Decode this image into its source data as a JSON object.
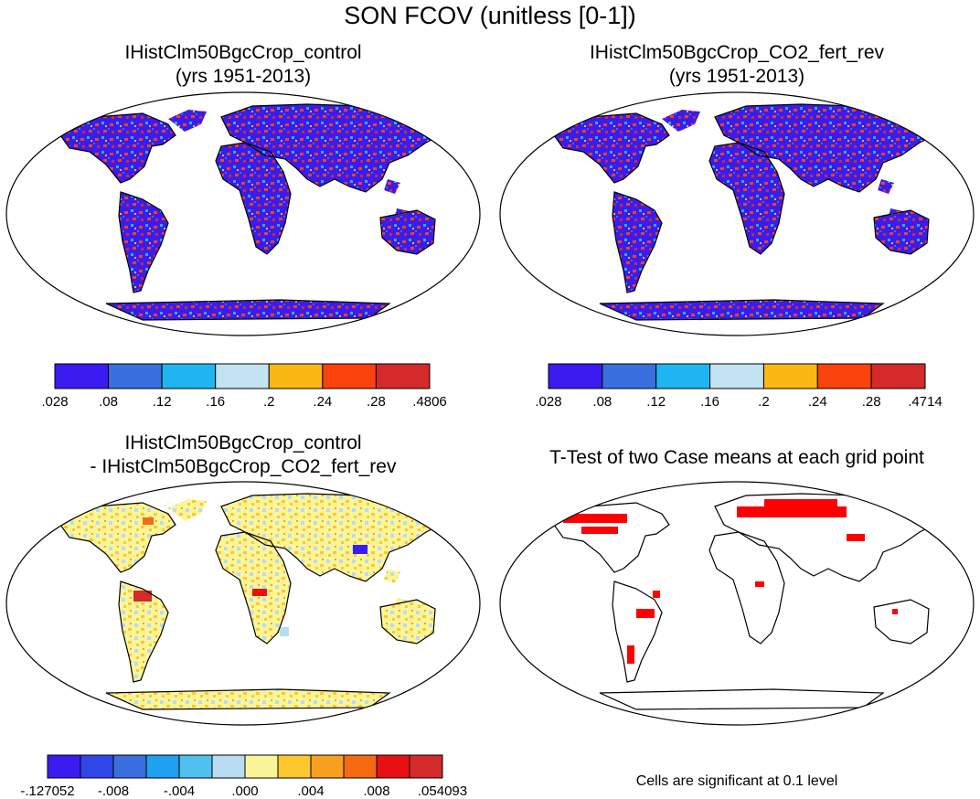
{
  "figure": {
    "title": "SON FCOV (unitless [0-1])",
    "note": "Cells are significant at 0.1 level"
  },
  "chart_data": [
    {
      "type": "heatmap",
      "title": "IHistClm50BgcCrop_control",
      "subtitle": "(yrs 1951-2013)",
      "colorbar": {
        "labels": [
          ".028",
          ".08",
          ".12",
          ".16",
          ".2",
          ".24",
          ".28",
          ".4806"
        ],
        "colors": [
          "#3a1cf0",
          "#3a6fe0",
          "#1fb5f2",
          "#c3e2f2",
          "#fbb714",
          "#fa420d",
          "#d42a2a"
        ],
        "range": [
          0.028,
          0.4806
        ]
      }
    },
    {
      "type": "heatmap",
      "title": "IHistClm50BgcCrop_CO2_fert_rev",
      "subtitle": "(yrs 1951-2013)",
      "colorbar": {
        "labels": [
          ".028",
          ".08",
          ".12",
          ".16",
          ".2",
          ".24",
          ".28",
          ".4714"
        ],
        "colors": [
          "#3a1cf0",
          "#3a6fe0",
          "#1fb5f2",
          "#c3e2f2",
          "#fbb714",
          "#fa420d",
          "#d42a2a"
        ],
        "range": [
          0.028,
          0.4714
        ]
      }
    },
    {
      "type": "heatmap",
      "title": "IHistClm50BgcCrop_control",
      "subtitle": "- IHistClm50BgcCrop_CO2_fert_rev",
      "colorbar": {
        "labels": [
          "-.127052",
          "-.008",
          "-.004",
          ".000",
          ".004",
          ".008",
          ".054093"
        ],
        "colors": [
          "#3a1cf0",
          "#2f46e8",
          "#3a6fe0",
          "#1fa0f0",
          "#4fc0f0",
          "#b8dcf2",
          "#fbf59a",
          "#fbc830",
          "#f7a020",
          "#f56a10",
          "#e81010",
          "#d42a2a"
        ],
        "range": [
          -0.127052,
          0.054093
        ]
      }
    },
    {
      "type": "heatmap",
      "title": "T-Test of two Case means at each grid point",
      "colors": {
        "significant": "#ff0000"
      }
    }
  ]
}
